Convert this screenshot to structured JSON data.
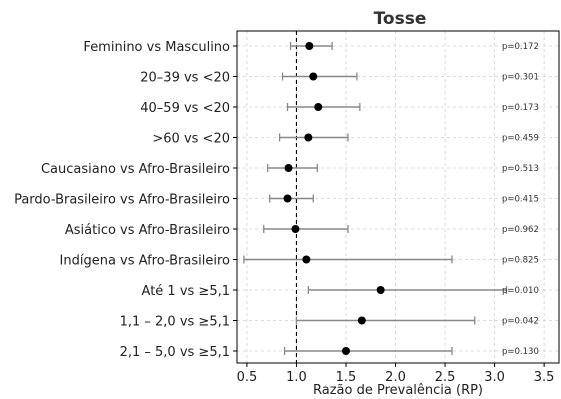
{
  "chart_data": {
    "type": "forest",
    "title": "Tosse",
    "xlabel": "Razão de Prevalência (RP)",
    "xlim": [
      0.4,
      3.65
    ],
    "xticks": [
      "0.5",
      "1.0",
      "1.5",
      "2.0",
      "2.5",
      "3.0",
      "3.5"
    ],
    "reference_line": 1.0,
    "grid": true,
    "rows": [
      {
        "label": "Feminino vs Masculino",
        "rp": 1.13,
        "ci_low": 0.94,
        "ci_high": 1.36,
        "p_label": "p=0.172"
      },
      {
        "label": "20–39 vs <20",
        "rp": 1.17,
        "ci_low": 0.86,
        "ci_high": 1.61,
        "p_label": "p=0.301"
      },
      {
        "label": "40–59 vs <20",
        "rp": 1.22,
        "ci_low": 0.91,
        "ci_high": 1.64,
        "p_label": "p=0.173"
      },
      {
        "label": ">60 vs <20",
        "rp": 1.12,
        "ci_low": 0.83,
        "ci_high": 1.52,
        "p_label": "p=0.459"
      },
      {
        "label": "Caucasiano vs Afro-Brasileiro",
        "rp": 0.92,
        "ci_low": 0.71,
        "ci_high": 1.21,
        "p_label": "p=0.513"
      },
      {
        "label": "Pardo-Brasileiro vs Afro-Brasileiro",
        "rp": 0.91,
        "ci_low": 0.73,
        "ci_high": 1.17,
        "p_label": "p=0.415"
      },
      {
        "label": "Asiático vs Afro-Brasileiro",
        "rp": 0.99,
        "ci_low": 0.67,
        "ci_high": 1.52,
        "p_label": "p=0.962"
      },
      {
        "label": "Indígena vs Afro-Brasileiro",
        "rp": 1.1,
        "ci_low": 0.47,
        "ci_high": 2.57,
        "p_label": "p=0.825"
      },
      {
        "label": "Até 1 vs ≥5,1",
        "rp": 1.85,
        "ci_low": 1.12,
        "ci_high": 3.12,
        "p_label": "p=0.010"
      },
      {
        "label": "1,1 – 2,0 vs ≥5,1",
        "rp": 1.66,
        "ci_low": 1.0,
        "ci_high": 2.8,
        "p_label": "p=0.042"
      },
      {
        "label": "2,1 – 5,0 vs ≥5,1",
        "rp": 1.5,
        "ci_low": 0.88,
        "ci_high": 2.57,
        "p_label": "p=0.130"
      }
    ],
    "colors": {
      "point": "#000000",
      "ci": "#888888",
      "grid": "#d0d0d0",
      "axis": "#000000"
    }
  }
}
